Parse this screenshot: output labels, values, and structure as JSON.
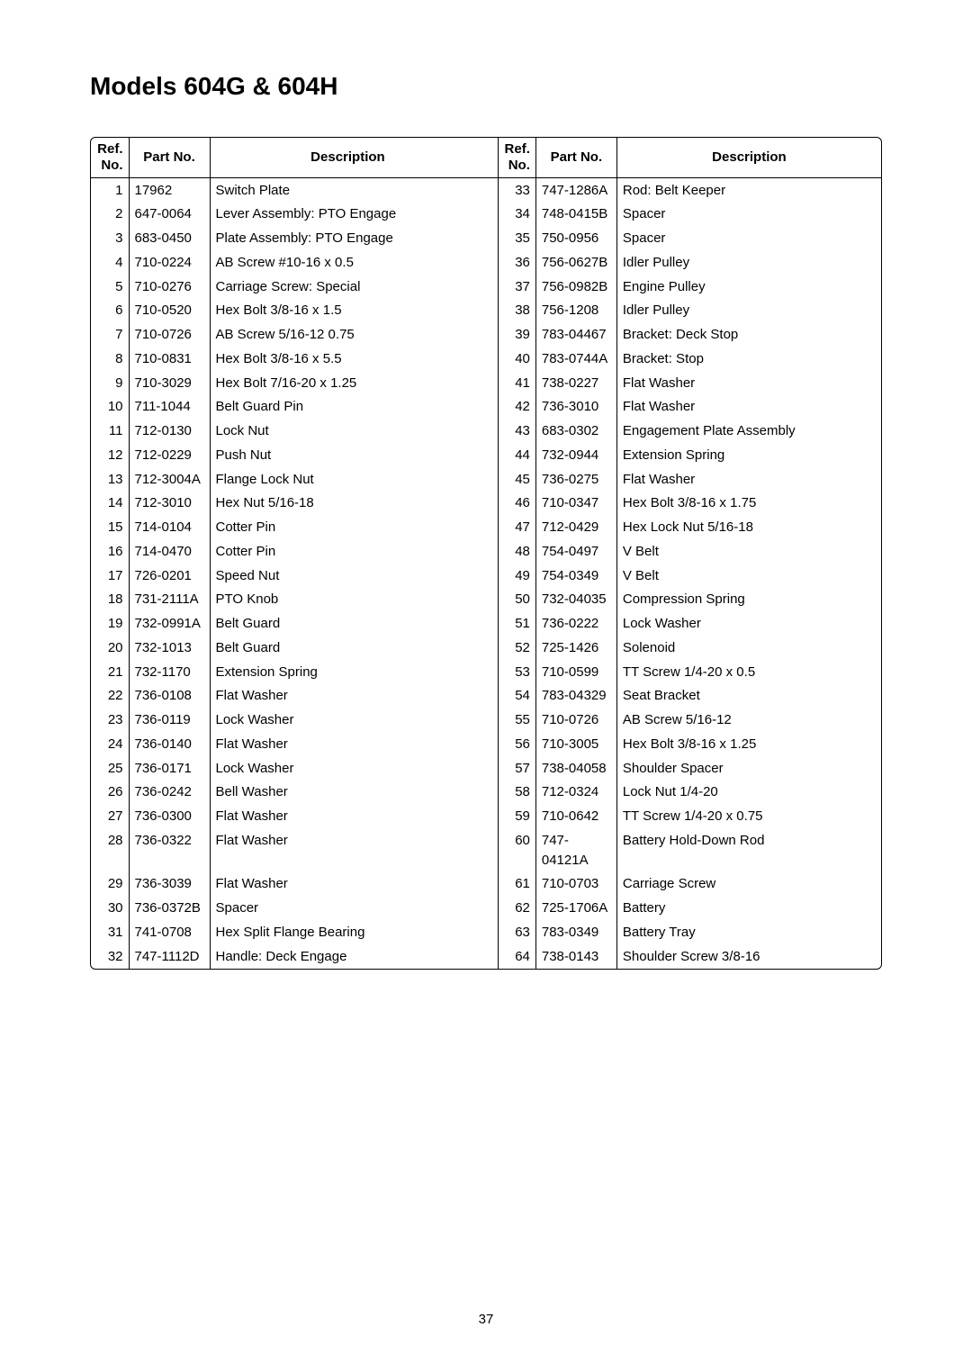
{
  "title": "Models 604G & 604H",
  "page_number": "37",
  "headers": {
    "ref": "Ref.",
    "no": "No.",
    "part": "Part No.",
    "desc": "Description"
  },
  "left": [
    {
      "ref": "1",
      "part": "17962",
      "desc": "Switch Plate"
    },
    {
      "ref": "2",
      "part": "647-0064",
      "desc": "Lever Assembly: PTO Engage"
    },
    {
      "ref": "3",
      "part": "683-0450",
      "desc": "Plate Assembly: PTO Engage"
    },
    {
      "ref": "4",
      "part": "710-0224",
      "desc": "AB Screw #10-16 x 0.5"
    },
    {
      "ref": "5",
      "part": "710-0276",
      "desc": "Carriage Screw: Special"
    },
    {
      "ref": "6",
      "part": "710-0520",
      "desc": "Hex Bolt 3/8-16 x 1.5"
    },
    {
      "ref": "7",
      "part": "710-0726",
      "desc": "AB Screw 5/16-12 0.75"
    },
    {
      "ref": "8",
      "part": "710-0831",
      "desc": "Hex Bolt 3/8-16 x 5.5"
    },
    {
      "ref": "9",
      "part": "710-3029",
      "desc": "Hex Bolt 7/16-20 x 1.25"
    },
    {
      "ref": "10",
      "part": "711-1044",
      "desc": "Belt Guard Pin"
    },
    {
      "ref": "11",
      "part": "712-0130",
      "desc": "Lock Nut"
    },
    {
      "ref": "12",
      "part": "712-0229",
      "desc": "Push Nut"
    },
    {
      "ref": "13",
      "part": "712-3004A",
      "desc": "Flange Lock Nut"
    },
    {
      "ref": "14",
      "part": "712-3010",
      "desc": "Hex Nut 5/16-18"
    },
    {
      "ref": "15",
      "part": "714-0104",
      "desc": "Cotter Pin"
    },
    {
      "ref": "16",
      "part": "714-0470",
      "desc": "Cotter Pin"
    },
    {
      "ref": "17",
      "part": "726-0201",
      "desc": "Speed Nut"
    },
    {
      "ref": "18",
      "part": "731-2111A",
      "desc": "PTO Knob"
    },
    {
      "ref": "19",
      "part": "732-0991A",
      "desc": "Belt Guard"
    },
    {
      "ref": "20",
      "part": "732-1013",
      "desc": "Belt Guard"
    },
    {
      "ref": "21",
      "part": "732-1170",
      "desc": "Extension Spring"
    },
    {
      "ref": "22",
      "part": "736-0108",
      "desc": "Flat Washer"
    },
    {
      "ref": "23",
      "part": "736-0119",
      "desc": "Lock Washer"
    },
    {
      "ref": "24",
      "part": "736-0140",
      "desc": "Flat Washer"
    },
    {
      "ref": "25",
      "part": "736-0171",
      "desc": "Lock Washer"
    },
    {
      "ref": "26",
      "part": "736-0242",
      "desc": "Bell Washer"
    },
    {
      "ref": "27",
      "part": "736-0300",
      "desc": "Flat Washer"
    },
    {
      "ref": "28",
      "part": "736-0322",
      "desc": "Flat Washer"
    },
    {
      "ref": "29",
      "part": "736-3039",
      "desc": "Flat Washer"
    },
    {
      "ref": "30",
      "part": "736-0372B",
      "desc": "Spacer"
    },
    {
      "ref": "31",
      "part": "741-0708",
      "desc": "Hex Split Flange Bearing"
    },
    {
      "ref": "32",
      "part": "747-1112D",
      "desc": "Handle: Deck Engage"
    }
  ],
  "right": [
    {
      "ref": "33",
      "part": "747-1286A",
      "desc": "Rod: Belt Keeper"
    },
    {
      "ref": "34",
      "part": "748-0415B",
      "desc": "Spacer"
    },
    {
      "ref": "35",
      "part": "750-0956",
      "desc": "Spacer"
    },
    {
      "ref": "36",
      "part": "756-0627B",
      "desc": "Idler Pulley"
    },
    {
      "ref": "37",
      "part": "756-0982B",
      "desc": "Engine Pulley"
    },
    {
      "ref": "38",
      "part": "756-1208",
      "desc": "Idler Pulley"
    },
    {
      "ref": "39",
      "part": "783-04467",
      "desc": "Bracket: Deck Stop"
    },
    {
      "ref": "40",
      "part": "783-0744A",
      "desc": "Bracket: Stop"
    },
    {
      "ref": "41",
      "part": "738-0227",
      "desc": "Flat Washer"
    },
    {
      "ref": "42",
      "part": "736-3010",
      "desc": "Flat Washer"
    },
    {
      "ref": "43",
      "part": "683-0302",
      "desc": "Engagement Plate Assembly"
    },
    {
      "ref": "44",
      "part": "732-0944",
      "desc": "Extension Spring"
    },
    {
      "ref": "45",
      "part": "736-0275",
      "desc": "Flat Washer"
    },
    {
      "ref": "46",
      "part": "710-0347",
      "desc": "Hex Bolt 3/8-16 x 1.75"
    },
    {
      "ref": "47",
      "part": "712-0429",
      "desc": "Hex Lock Nut 5/16-18"
    },
    {
      "ref": "48",
      "part": "754-0497",
      "desc": "V Belt"
    },
    {
      "ref": "49",
      "part": "754-0349",
      "desc": "V Belt"
    },
    {
      "ref": "50",
      "part": "732-04035",
      "desc": "Compression Spring"
    },
    {
      "ref": "51",
      "part": "736-0222",
      "desc": "Lock Washer"
    },
    {
      "ref": "52",
      "part": "725-1426",
      "desc": "Solenoid"
    },
    {
      "ref": "53",
      "part": "710-0599",
      "desc": "TT Screw 1/4-20 x 0.5"
    },
    {
      "ref": "54",
      "part": "783-04329",
      "desc": "Seat Bracket"
    },
    {
      "ref": "55",
      "part": "710-0726",
      "desc": "AB Screw 5/16-12"
    },
    {
      "ref": "56",
      "part": "710-3005",
      "desc": "Hex Bolt 3/8-16 x 1.25"
    },
    {
      "ref": "57",
      "part": "738-04058",
      "desc": "Shoulder Spacer"
    },
    {
      "ref": "58",
      "part": "712-0324",
      "desc": "Lock Nut 1/4-20"
    },
    {
      "ref": "59",
      "part": "710-0642",
      "desc": "TT Screw 1/4-20 x 0.75"
    },
    {
      "ref": "60",
      "part": "747-04121A",
      "desc": "Battery Hold-Down Rod"
    },
    {
      "ref": "61",
      "part": "710-0703",
      "desc": "Carriage Screw"
    },
    {
      "ref": "62",
      "part": "725-1706A",
      "desc": "Battery"
    },
    {
      "ref": "63",
      "part": "783-0349",
      "desc": "Battery Tray"
    },
    {
      "ref": "64",
      "part": "738-0143",
      "desc": "Shoulder Screw 3/8-16"
    }
  ]
}
